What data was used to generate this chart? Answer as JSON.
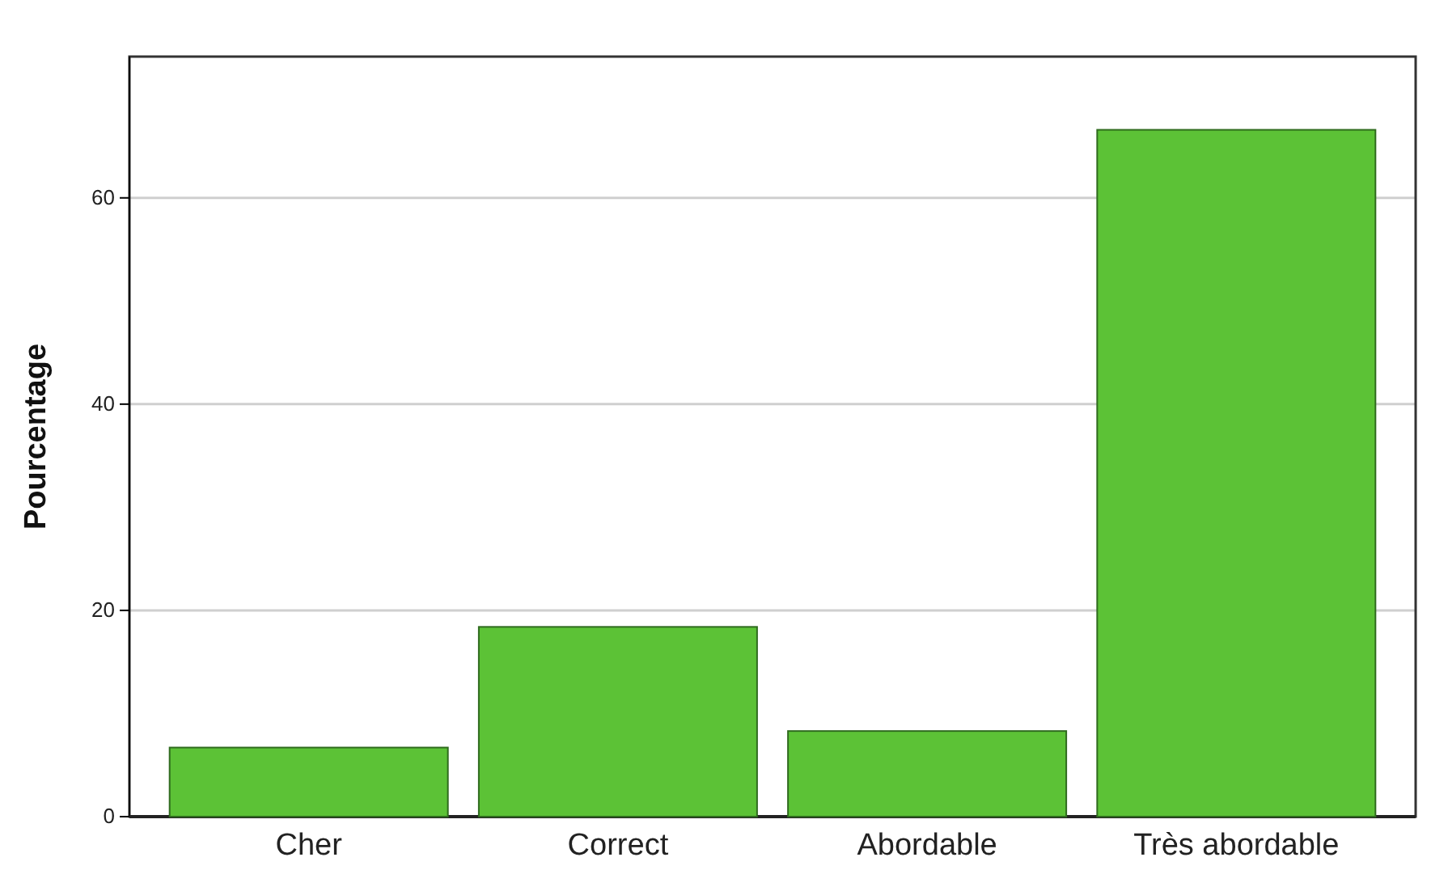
{
  "chart_data": {
    "type": "bar",
    "ylabel": "Pourcentage",
    "categories": [
      "Cher",
      "Correct",
      "Abordable",
      "Très abordable"
    ],
    "values": [
      6.7,
      18.4,
      8.3,
      66.6
    ],
    "color": "#5cc236",
    "ylim": [
      0,
      73.7
    ],
    "yticks": [
      0,
      20,
      40,
      60
    ],
    "grid": "y"
  }
}
